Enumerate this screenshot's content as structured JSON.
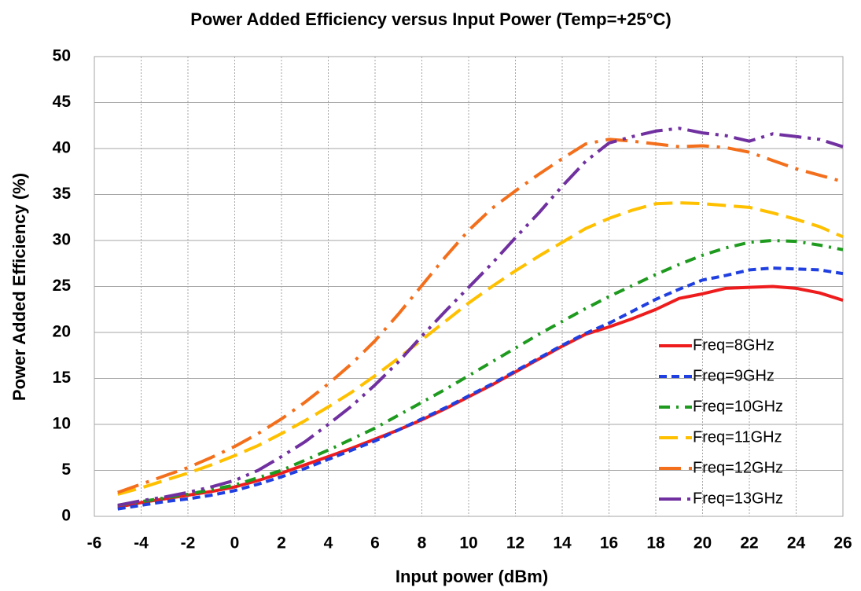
{
  "chart_data": {
    "type": "line",
    "title": "Power Added Efficiency versus Input Power (Temp=+25°C)",
    "xlabel": "Input power (dBm)",
    "ylabel": "Power Added Efficiency (%)",
    "x": [
      -5,
      -4,
      -3,
      -2,
      -1,
      0,
      1,
      2,
      3,
      4,
      5,
      6,
      7,
      8,
      9,
      10,
      11,
      12,
      13,
      14,
      15,
      16,
      17,
      18,
      19,
      20,
      21,
      22,
      23,
      24,
      25,
      26
    ],
    "series": [
      {
        "name": "Freq=8GHz",
        "color": "#ee1c1c",
        "dash": "solid",
        "values": [
          1.0,
          1.5,
          1.9,
          2.3,
          2.7,
          3.2,
          3.9,
          4.7,
          5.6,
          6.5,
          7.4,
          8.4,
          9.4,
          10.5,
          11.7,
          13.0,
          14.3,
          15.7,
          17.1,
          18.5,
          19.8,
          20.6,
          21.5,
          22.5,
          23.7,
          24.2,
          24.8,
          24.9,
          25.0,
          24.8,
          24.3,
          23.5
        ]
      },
      {
        "name": "Freq=9GHz",
        "color": "#1f3fe0",
        "dash": "dash",
        "values": [
          0.8,
          1.2,
          1.6,
          1.9,
          2.3,
          2.8,
          3.5,
          4.3,
          5.2,
          6.2,
          7.2,
          8.2,
          9.4,
          10.6,
          11.8,
          13.1,
          14.4,
          15.8,
          17.2,
          18.6,
          19.9,
          21.0,
          22.3,
          23.6,
          24.7,
          25.7,
          26.2,
          26.8,
          27.0,
          26.9,
          26.8,
          26.4
        ]
      },
      {
        "name": "Freq=10GHz",
        "color": "#1e9a1e",
        "dash": "dashdot",
        "values": [
          1.2,
          1.6,
          2.0,
          2.4,
          2.9,
          3.4,
          4.2,
          5.0,
          6.1,
          7.2,
          8.4,
          9.6,
          11.0,
          12.4,
          13.8,
          15.3,
          16.8,
          18.3,
          19.8,
          21.2,
          22.6,
          23.9,
          25.1,
          26.3,
          27.4,
          28.4,
          29.2,
          29.8,
          30.0,
          29.9,
          29.5,
          29.0
        ]
      },
      {
        "name": "Freq=11GHz",
        "color": "#ffc000",
        "dash": "longdash",
        "values": [
          2.4,
          3.1,
          3.9,
          4.7,
          5.6,
          6.6,
          7.7,
          9.0,
          10.4,
          11.9,
          13.5,
          15.3,
          17.2,
          19.2,
          21.2,
          23.2,
          25.0,
          26.7,
          28.3,
          29.8,
          31.3,
          32.4,
          33.3,
          34.0,
          34.1,
          34.0,
          33.8,
          33.6,
          33.0,
          32.3,
          31.5,
          30.4
        ]
      },
      {
        "name": "Freq=12GHz",
        "color": "#f36f1c",
        "dash": "longdashdot",
        "values": [
          2.6,
          3.5,
          4.4,
          5.3,
          6.4,
          7.6,
          9.0,
          10.6,
          12.4,
          14.4,
          16.6,
          19.1,
          22.0,
          25.1,
          28.2,
          31.1,
          33.5,
          35.4,
          37.2,
          38.9,
          40.5,
          41.0,
          40.8,
          40.5,
          40.2,
          40.3,
          40.1,
          39.6,
          38.7,
          37.8,
          37.1,
          36.4
        ]
      },
      {
        "name": "Freq=13GHz",
        "color": "#7030a0",
        "dash": "longdashdotdot",
        "values": [
          1.2,
          1.7,
          2.1,
          2.6,
          3.2,
          3.9,
          5.0,
          6.5,
          8.1,
          10.0,
          12.0,
          14.3,
          16.8,
          19.6,
          22.3,
          24.9,
          27.5,
          30.3,
          33.0,
          35.9,
          38.6,
          40.6,
          41.3,
          41.9,
          42.2,
          41.7,
          41.4,
          40.8,
          41.6,
          41.3,
          41.0,
          40.2
        ]
      }
    ],
    "xlim": [
      -6,
      26
    ],
    "xticks": [
      -6,
      -4,
      -2,
      0,
      2,
      4,
      6,
      8,
      10,
      12,
      14,
      16,
      18,
      20,
      22,
      24,
      26
    ],
    "ylim": [
      0,
      50
    ],
    "yticks": [
      0,
      5,
      10,
      15,
      20,
      25,
      30,
      35,
      40,
      45,
      50
    ],
    "grid": true,
    "legend": "lower right"
  }
}
